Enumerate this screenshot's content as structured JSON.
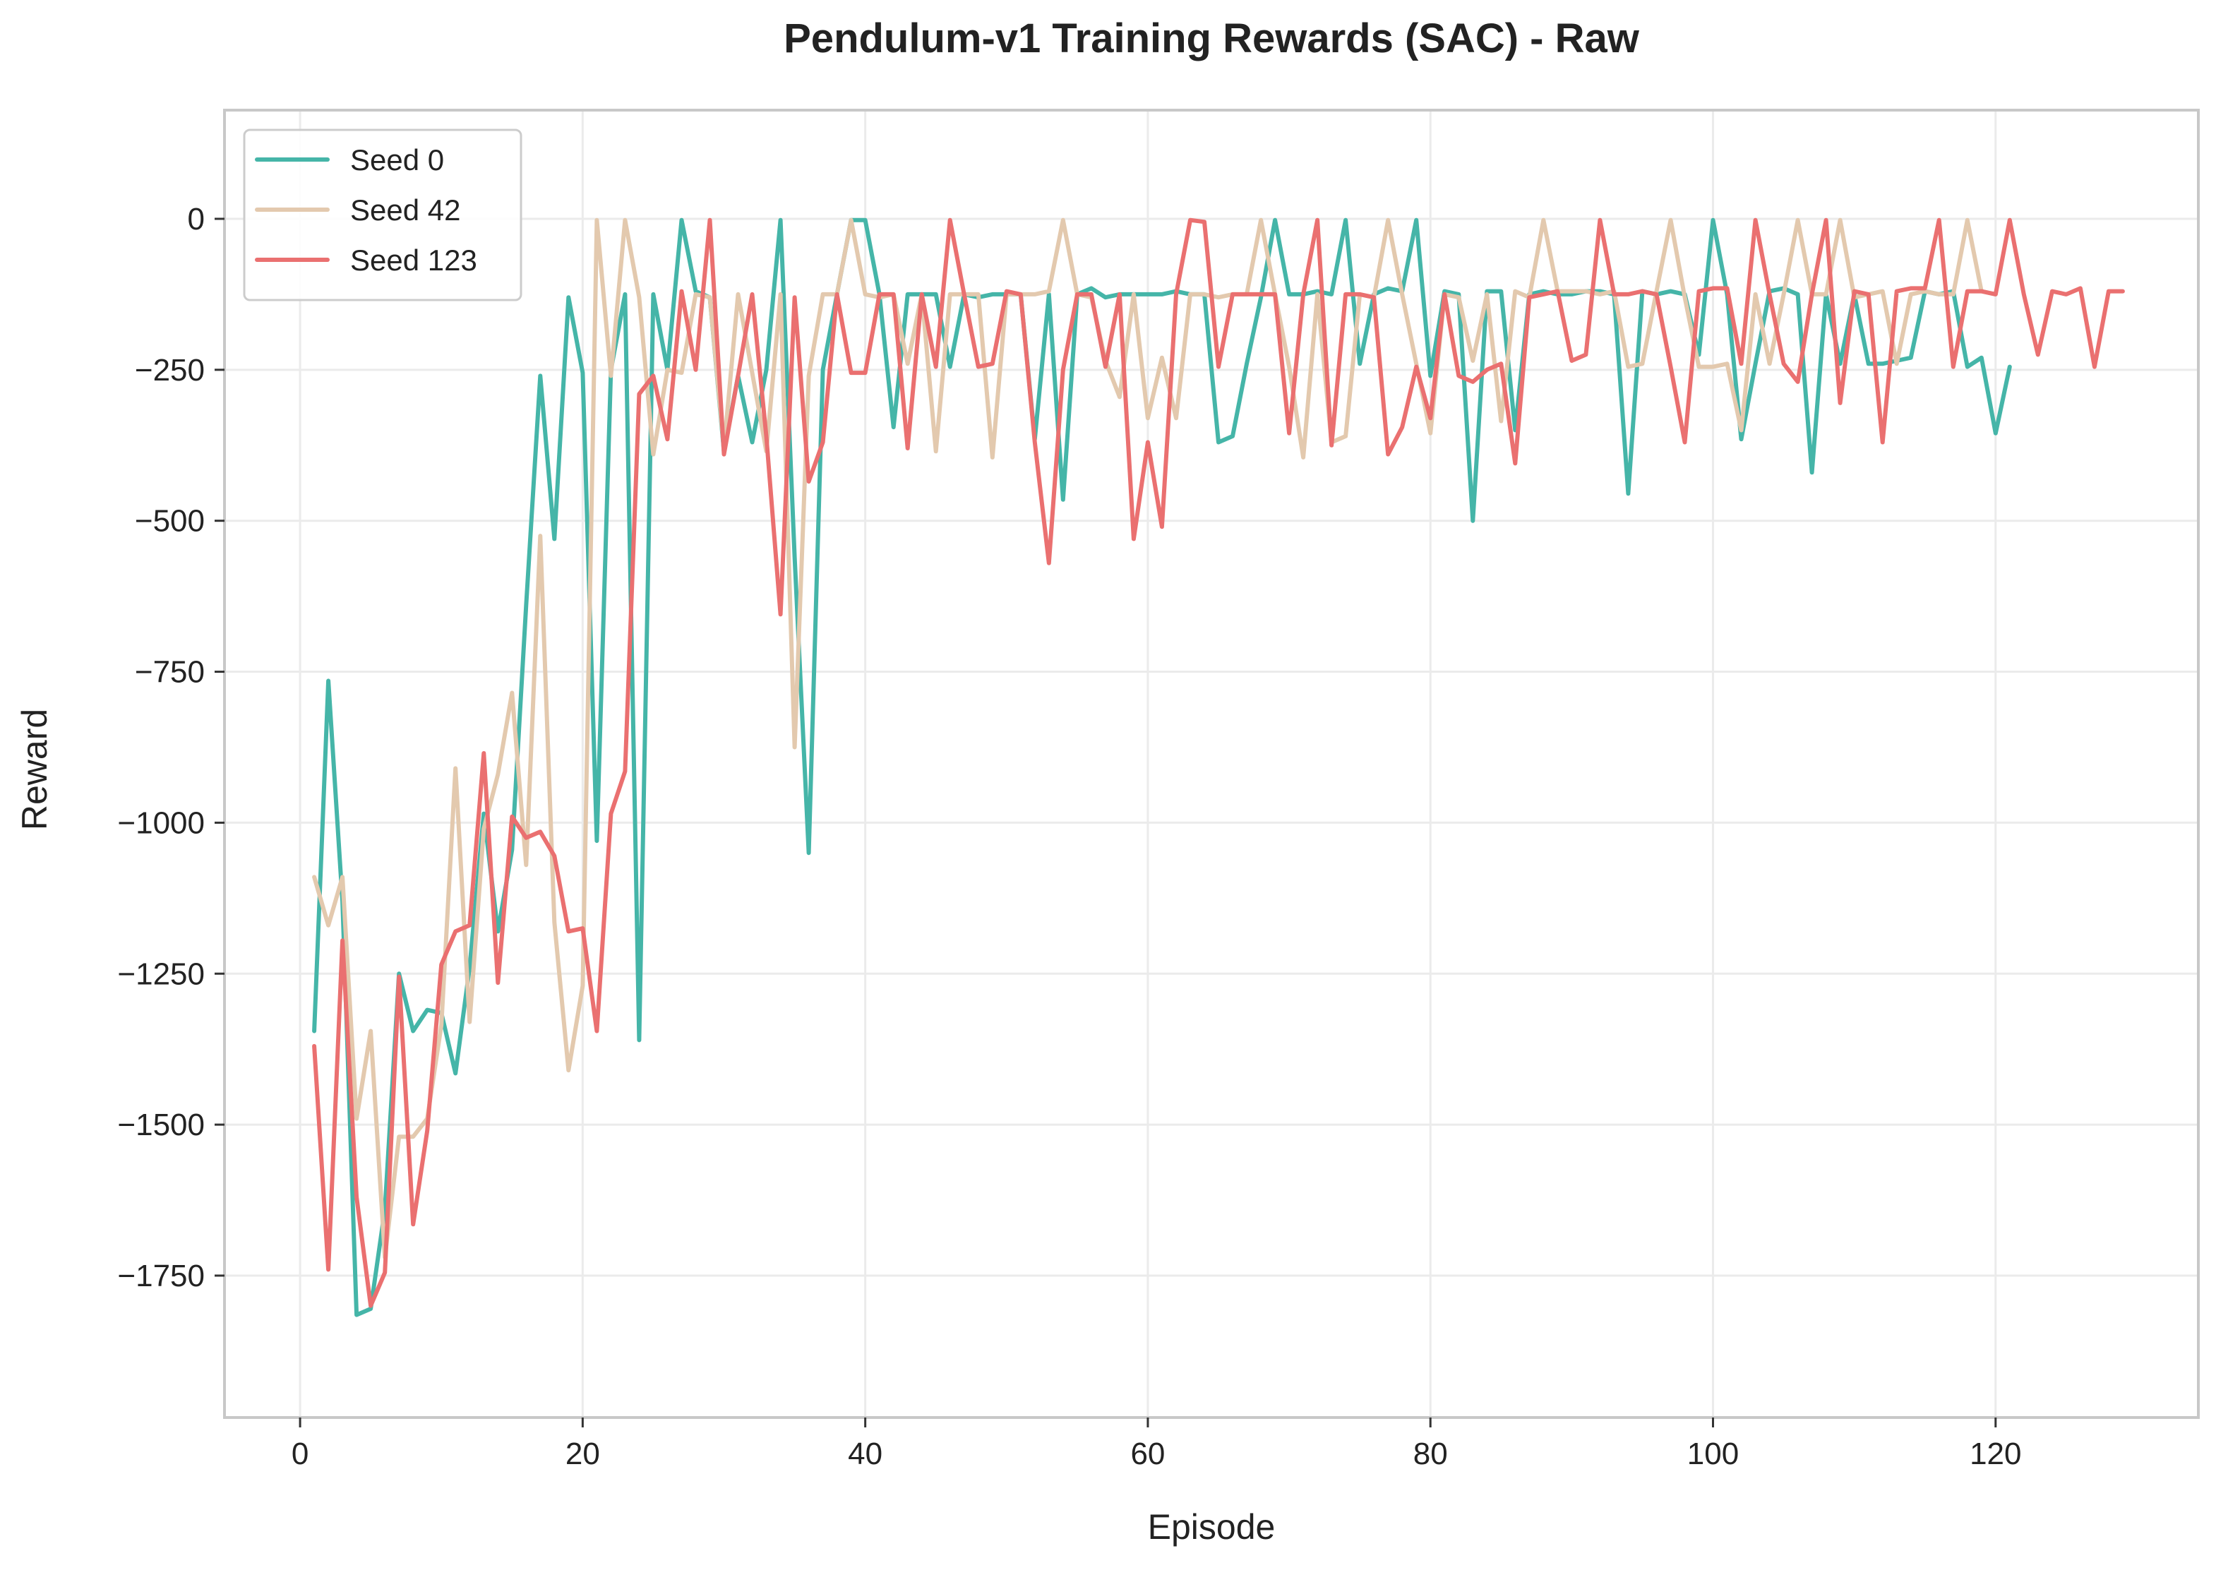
{
  "colors": {
    "seed0": "#45b5a8",
    "seed42": "#e3c9ae",
    "seed123": "#ea7070",
    "grid": "#ebebeb",
    "frame": "#c8c8c8"
  },
  "chart_data": {
    "type": "line",
    "title": "Pendulum-v1 Training Rewards (SAC) - Raw",
    "xlabel": "Episode",
    "ylabel": "Reward",
    "xlim": [
      -5.35,
      134.35
    ],
    "ylim": [
      -1985,
      180
    ],
    "xticks": [
      0,
      20,
      40,
      60,
      80,
      100,
      120
    ],
    "xtick_labels": [
      "0",
      "20",
      "40",
      "60",
      "80",
      "100",
      "120"
    ],
    "yticks": [
      0,
      -250,
      -500,
      -750,
      -1000,
      -1250,
      -1500,
      -1750
    ],
    "ytick_labels": [
      "0",
      "−250",
      "−500",
      "−750",
      "−1000",
      "−1250",
      "−1500",
      "−1750"
    ],
    "grid": true,
    "legend": "top-left",
    "series": [
      {
        "name": "Seed 0",
        "color": "#45b5a8",
        "x_start": 1,
        "values": [
          -1345,
          -765,
          -1130,
          -1815,
          -1805,
          -1640,
          -1250,
          -1345,
          -1310,
          -1315,
          -1415,
          -1240,
          -985,
          -1180,
          -1045,
          -640,
          -260,
          -530,
          -130,
          -255,
          -1030,
          -250,
          -125,
          -1360,
          -125,
          -250,
          -2,
          -120,
          -130,
          -385,
          -260,
          -370,
          -250,
          -2,
          -560,
          -1050,
          -250,
          -125,
          -2,
          -2,
          -125,
          -345,
          -125,
          -125,
          -125,
          -245,
          -125,
          -130,
          -125,
          -125,
          -125,
          -365,
          -125,
          -465,
          -125,
          -115,
          -130,
          -125,
          -125,
          -125,
          -125,
          -120,
          -125,
          -125,
          -370,
          -360,
          -240,
          -130,
          -2,
          -125,
          -125,
          -120,
          -125,
          -2,
          -240,
          -125,
          -115,
          -120,
          -2,
          -260,
          -120,
          -125,
          -500,
          -120,
          -120,
          -350,
          -125,
          -120,
          -125,
          -125,
          -120,
          -120,
          -125,
          -455,
          -120,
          -125,
          -120,
          -125,
          -225,
          -2,
          -125,
          -365,
          -240,
          -120,
          -115,
          -125,
          -420,
          -125,
          -240,
          -125,
          -240,
          -240,
          -235,
          -230,
          -120,
          -125,
          -120,
          -245,
          -230,
          -355,
          -245
        ]
      },
      {
        "name": "Seed 42",
        "color": "#e3c9ae",
        "x_start": 1,
        "values": [
          -1090,
          -1170,
          -1090,
          -1490,
          -1345,
          -1720,
          -1520,
          -1520,
          -1490,
          -1335,
          -910,
          -1330,
          -1010,
          -920,
          -785,
          -1070,
          -525,
          -1165,
          -1410,
          -1270,
          -2,
          -260,
          -2,
          -130,
          -390,
          -250,
          -255,
          -125,
          -130,
          -380,
          -125,
          -255,
          -385,
          -125,
          -875,
          -260,
          -125,
          -125,
          -2,
          -125,
          -130,
          -125,
          -240,
          -125,
          -385,
          -125,
          -125,
          -125,
          -395,
          -125,
          -125,
          -125,
          -120,
          -2,
          -125,
          -130,
          -235,
          -295,
          -125,
          -330,
          -230,
          -330,
          -125,
          -125,
          -130,
          -125,
          -125,
          -2,
          -125,
          -245,
          -395,
          -125,
          -370,
          -360,
          -125,
          -130,
          -2,
          -125,
          -240,
          -355,
          -125,
          -130,
          -235,
          -125,
          -335,
          -120,
          -130,
          -2,
          -120,
          -120,
          -120,
          -125,
          -120,
          -245,
          -240,
          -120,
          -2,
          -130,
          -245,
          -245,
          -240,
          -350,
          -125,
          -240,
          -125,
          -2,
          -125,
          -125,
          -2,
          -130,
          -125,
          -120,
          -240,
          -125,
          -120,
          -125,
          -125,
          -2,
          -120,
          -125
        ]
      },
      {
        "name": "Seed 123",
        "color": "#ea7070",
        "x_start": 1,
        "values": [
          -1370,
          -1740,
          -1195,
          -1620,
          -1800,
          -1745,
          -1255,
          -1665,
          -1510,
          -1235,
          -1180,
          -1170,
          -885,
          -1265,
          -990,
          -1025,
          -1015,
          -1055,
          -1180,
          -1175,
          -1345,
          -985,
          -915,
          -290,
          -260,
          -365,
          -120,
          -250,
          -2,
          -390,
          -260,
          -125,
          -360,
          -655,
          -130,
          -435,
          -370,
          -125,
          -255,
          -255,
          -125,
          -125,
          -380,
          -125,
          -245,
          -2,
          -125,
          -245,
          -240,
          -120,
          -125,
          -370,
          -570,
          -250,
          -125,
          -125,
          -245,
          -125,
          -530,
          -370,
          -510,
          -125,
          -2,
          -5,
          -245,
          -125,
          -125,
          -125,
          -125,
          -355,
          -125,
          -2,
          -375,
          -125,
          -125,
          -130,
          -390,
          -345,
          -245,
          -330,
          -125,
          -260,
          -270,
          -250,
          -240,
          -405,
          -130,
          -125,
          -120,
          -235,
          -225,
          -2,
          -125,
          -125,
          -120,
          -125,
          -245,
          -370,
          -120,
          -115,
          -115,
          -240,
          -2,
          -125,
          -240,
          -270,
          -125,
          -2,
          -305,
          -120,
          -125,
          -370,
          -120,
          -115,
          -115,
          -2,
          -245,
          -120,
          -120,
          -125,
          -2,
          -125,
          -225,
          -120,
          -125,
          -115,
          -245,
          -120,
          -120
        ]
      }
    ]
  }
}
